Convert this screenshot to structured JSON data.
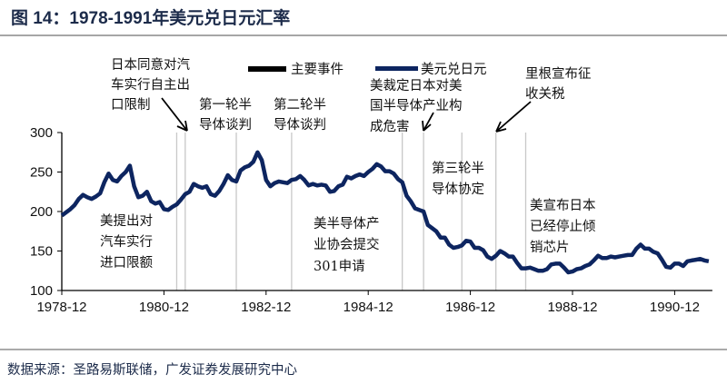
{
  "title": "图 14：1978-1991年美元兑日元汇率",
  "source": "数据来源：圣路易斯联储，广发证券发展研究中心",
  "legend": {
    "events_label": "主要事件",
    "series_label": "美元兑日元"
  },
  "colors": {
    "series": "#0d2560",
    "event_line": "#c8c8c8",
    "text": "#111111",
    "title": "#1c2b4a"
  },
  "annotations": [
    {
      "lines": [
        "日本同意对汽",
        "车实行自主出",
        "口限制"
      ]
    },
    {
      "lines": [
        "第一轮半",
        "导体谈判"
      ]
    },
    {
      "lines": [
        "第二轮半",
        "导体谈判"
      ]
    },
    {
      "lines": [
        "美裁定日本对美",
        "国半导体产业构",
        "成危害"
      ]
    },
    {
      "lines": [
        "里根宣布征",
        "收关税"
      ]
    },
    {
      "lines": [
        "第三轮半",
        "导体协定"
      ]
    },
    {
      "lines": [
        "美宣布日本",
        "已经停止倾",
        "销芯片"
      ]
    },
    {
      "lines": [
        "美提出对",
        "汽车实行",
        "进口限额"
      ]
    },
    {
      "lines": [
        "美半导体产",
        "业协会提交",
        "301申请"
      ]
    }
  ],
  "chart_data": {
    "type": "line",
    "title": "图 14：1978-1991年美元兑日元汇率",
    "xlabel": "",
    "ylabel": "",
    "ylim": [
      100,
      300
    ],
    "yticks": [
      100,
      150,
      200,
      250,
      300
    ],
    "xticks": [
      "1978-12",
      "1980-12",
      "1982-12",
      "1984-12",
      "1986-12",
      "1988-12",
      "1990-12"
    ],
    "xlim": [
      "1978-12",
      "1991-08"
    ],
    "grid": false,
    "legend_position": "top",
    "event_dates": [
      "1981-03",
      "1981-05",
      "1982-05",
      "1983-06",
      "1985-08",
      "1986-01",
      "1986-10",
      "1987-06",
      "1988-01"
    ],
    "series": [
      {
        "name": "美元兑日元",
        "x": [
          "1978-12",
          "1979-01",
          "1979-02",
          "1979-03",
          "1979-04",
          "1979-05",
          "1979-06",
          "1979-07",
          "1979-08",
          "1979-09",
          "1979-10",
          "1979-11",
          "1979-12",
          "1980-01",
          "1980-02",
          "1980-03",
          "1980-04",
          "1980-05",
          "1980-06",
          "1980-07",
          "1980-08",
          "1980-09",
          "1980-10",
          "1980-11",
          "1980-12",
          "1981-01",
          "1981-02",
          "1981-03",
          "1981-04",
          "1981-05",
          "1981-06",
          "1981-07",
          "1981-08",
          "1981-09",
          "1981-10",
          "1981-11",
          "1981-12",
          "1982-01",
          "1982-02",
          "1982-03",
          "1982-04",
          "1982-05",
          "1982-06",
          "1982-07",
          "1982-08",
          "1982-09",
          "1982-10",
          "1982-11",
          "1982-12",
          "1983-01",
          "1983-02",
          "1983-03",
          "1983-04",
          "1983-05",
          "1983-06",
          "1983-07",
          "1983-08",
          "1983-09",
          "1983-10",
          "1983-11",
          "1983-12",
          "1984-01",
          "1984-02",
          "1984-03",
          "1984-04",
          "1984-05",
          "1984-06",
          "1984-07",
          "1984-08",
          "1984-09",
          "1984-10",
          "1984-11",
          "1984-12",
          "1985-01",
          "1985-02",
          "1985-03",
          "1985-04",
          "1985-05",
          "1985-06",
          "1985-07",
          "1985-08",
          "1985-09",
          "1985-10",
          "1985-11",
          "1985-12",
          "1986-01",
          "1986-02",
          "1986-03",
          "1986-04",
          "1986-05",
          "1986-06",
          "1986-07",
          "1986-08",
          "1986-09",
          "1986-10",
          "1986-11",
          "1986-12",
          "1987-01",
          "1987-02",
          "1987-03",
          "1987-04",
          "1987-05",
          "1987-06",
          "1987-07",
          "1987-08",
          "1987-09",
          "1987-10",
          "1987-11",
          "1987-12",
          "1988-01",
          "1988-02",
          "1988-03",
          "1988-04",
          "1988-05",
          "1988-06",
          "1988-07",
          "1988-08",
          "1988-09",
          "1988-10",
          "1988-11",
          "1988-12",
          "1989-01",
          "1989-02",
          "1989-03",
          "1989-04",
          "1989-05",
          "1989-06",
          "1989-07",
          "1989-08",
          "1989-09",
          "1989-10",
          "1989-11",
          "1989-12",
          "1990-01",
          "1990-02",
          "1990-03",
          "1990-04",
          "1990-05",
          "1990-06",
          "1990-07",
          "1990-08",
          "1990-09",
          "1990-10",
          "1990-11",
          "1990-12",
          "1991-01",
          "1991-02",
          "1991-03",
          "1991-04",
          "1991-05",
          "1991-06",
          "1991-07",
          "1991-08"
        ],
        "values": [
          195,
          199,
          203,
          208,
          216,
          221,
          218,
          216,
          219,
          223,
          237,
          248,
          240,
          238,
          245,
          250,
          258,
          232,
          218,
          220,
          225,
          213,
          210,
          212,
          203,
          202,
          206,
          209,
          215,
          222,
          225,
          235,
          232,
          230,
          232,
          222,
          220,
          226,
          235,
          246,
          240,
          238,
          252,
          256,
          258,
          263,
          275,
          265,
          240,
          232,
          236,
          238,
          237,
          236,
          240,
          241,
          245,
          240,
          233,
          235,
          233,
          234,
          233,
          225,
          226,
          232,
          234,
          244,
          242,
          245,
          247,
          245,
          250,
          254,
          260,
          257,
          251,
          251,
          248,
          241,
          237,
          220,
          213,
          204,
          202,
          200,
          183,
          179,
          175,
          167,
          167,
          158,
          154,
          155,
          157,
          163,
          162,
          154,
          154,
          151,
          143,
          140,
          144,
          150,
          147,
          143,
          143,
          135,
          128,
          128,
          129,
          127,
          125,
          125,
          127,
          133,
          134,
          134,
          129,
          123,
          124,
          127,
          128,
          131,
          133,
          138,
          144,
          141,
          141,
          143,
          142,
          143,
          144,
          145,
          145,
          153,
          158,
          153,
          153,
          149,
          147,
          139,
          130,
          129,
          134,
          134,
          131,
          137,
          138,
          139,
          140,
          138,
          137
        ]
      }
    ]
  }
}
